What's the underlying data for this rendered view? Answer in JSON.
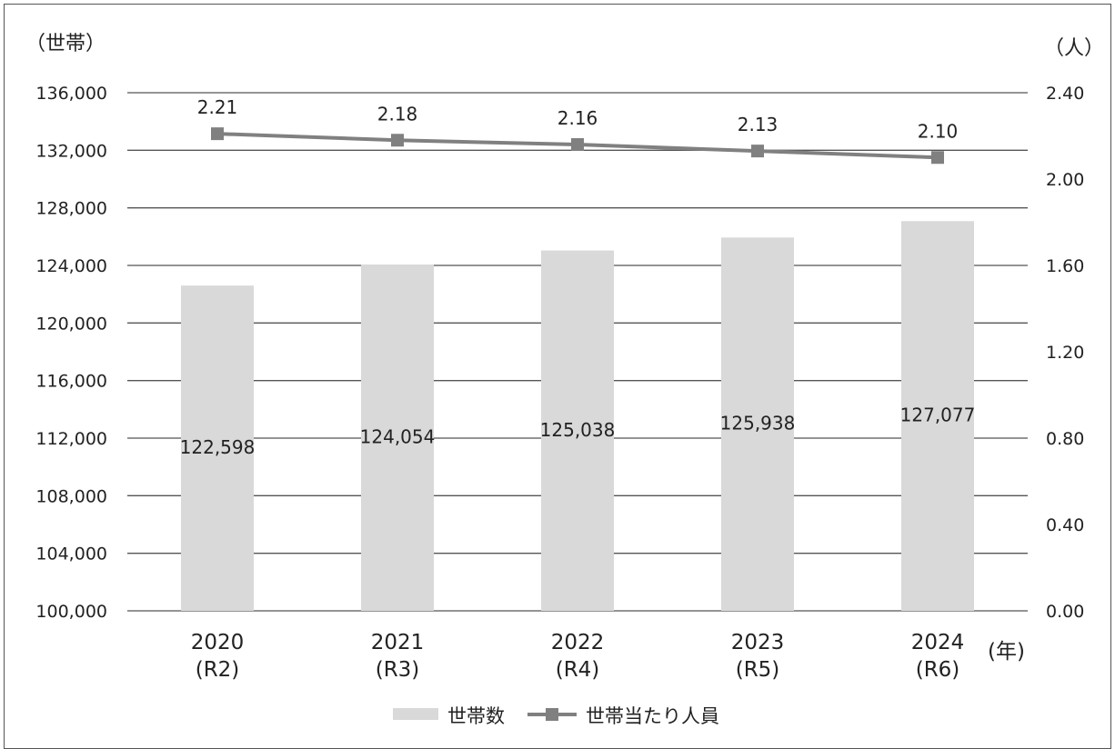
{
  "chart_data": {
    "type": "bar+line",
    "categories": [
      "2020",
      "2021",
      "2022",
      "2023",
      "2024"
    ],
    "category_sublabels": [
      "(R2)",
      "(R3)",
      "(R4)",
      "(R5)",
      "(R6)"
    ],
    "series": [
      {
        "name": "世帯数",
        "type": "bar",
        "axis": "left",
        "values": [
          122598,
          124054,
          125038,
          125938,
          127077
        ],
        "labels": [
          "122,598",
          "124,054",
          "125,038",
          "125,938",
          "127,077"
        ],
        "color": "#d9d9d9"
      },
      {
        "name": "世帯当たり人員",
        "type": "line",
        "axis": "right",
        "values": [
          2.21,
          2.18,
          2.16,
          2.13,
          2.1
        ],
        "labels": [
          "2.21",
          "2.18",
          "2.16",
          "2.13",
          "2.10"
        ],
        "color": "#808080"
      }
    ],
    "y_left": {
      "unit_label": "（世帯）",
      "ylim": [
        100000,
        136000
      ],
      "ticks": [
        100000,
        104000,
        108000,
        112000,
        116000,
        120000,
        124000,
        128000,
        132000,
        136000
      ],
      "tick_labels": [
        "100,000",
        "104,000",
        "108,000",
        "112,000",
        "116,000",
        "120,000",
        "124,000",
        "128,000",
        "132,000",
        "136,000"
      ]
    },
    "y_right": {
      "unit_label": "（人）",
      "ylim": [
        0,
        2.4
      ],
      "ticks": [
        0,
        0.4,
        0.8,
        1.2,
        1.6,
        2.0,
        2.4
      ],
      "tick_labels": [
        "0.00",
        "0.40",
        "0.80",
        "1.20",
        "1.60",
        "2.00",
        "2.40"
      ]
    },
    "x_unit_label": "(年)",
    "grid": true,
    "legend_position": "bottom-center"
  }
}
